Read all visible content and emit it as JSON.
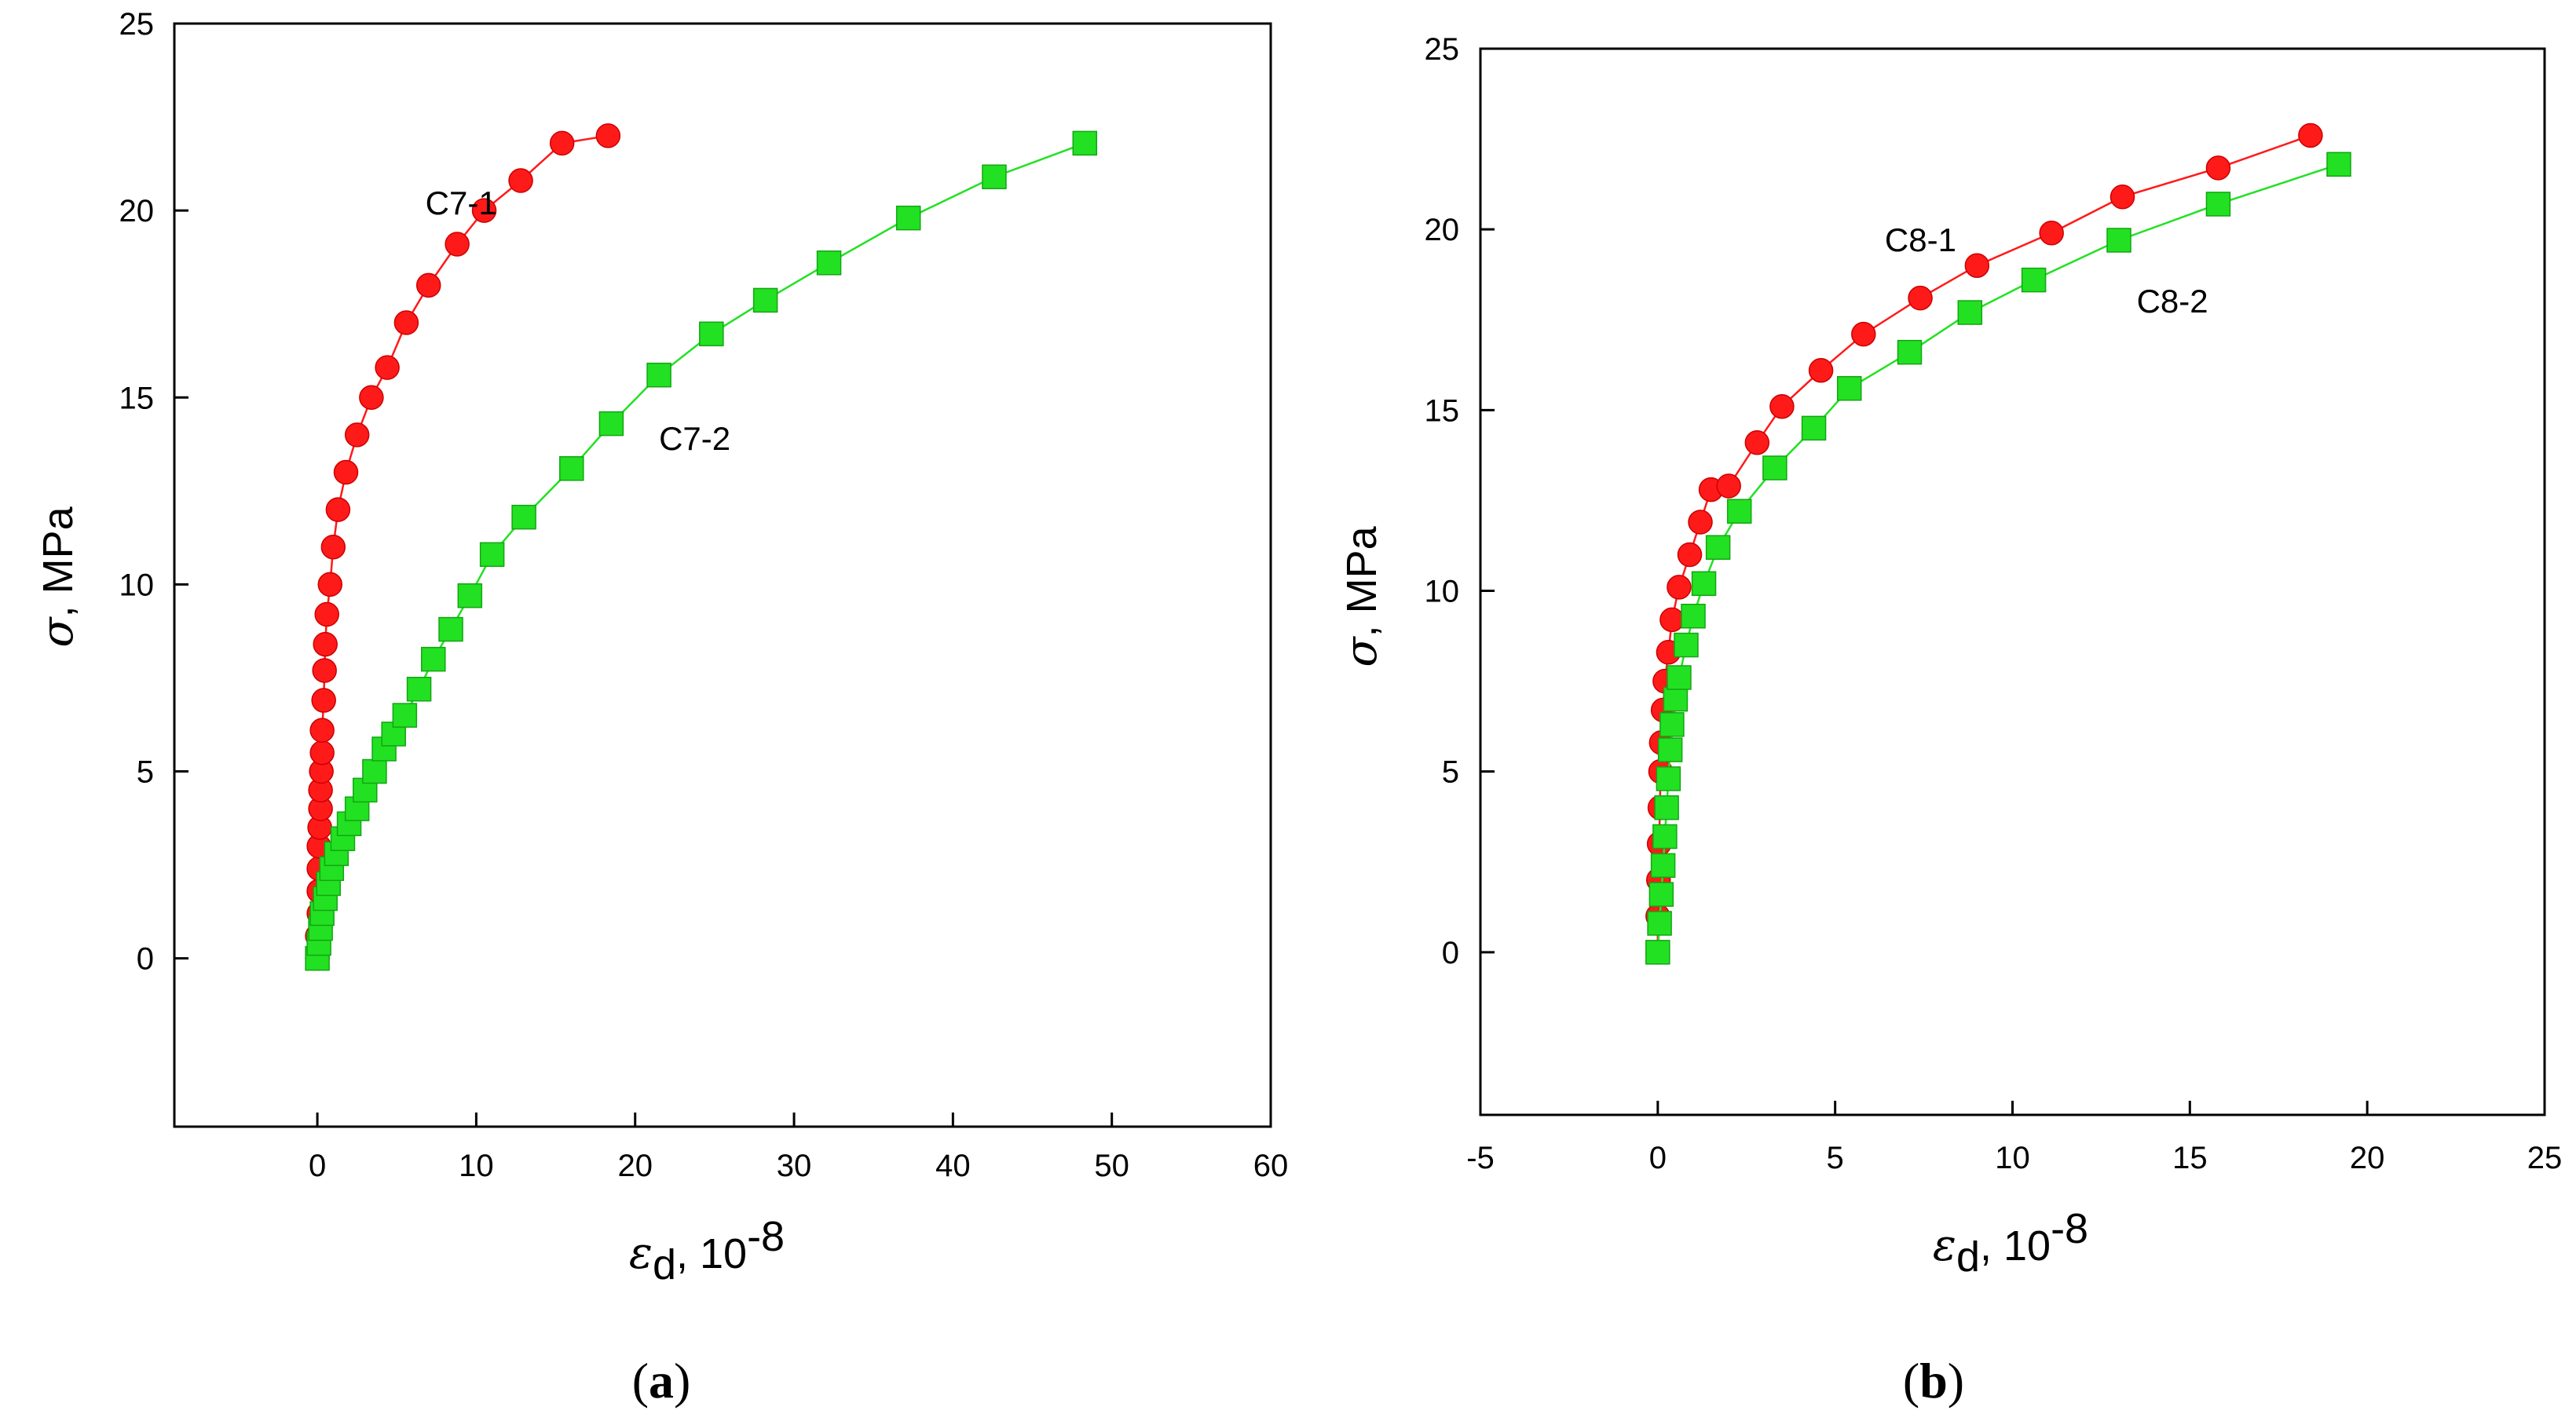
{
  "chart_data": [
    {
      "type": "scatter",
      "panel_label": "a",
      "xlabel_symbol": "ε",
      "xlabel_subscript": "d",
      "xlabel_rest": ", 10",
      "xlabel_exponent": "-8",
      "ylabel_symbol": "σ",
      "ylabel_rest": ", MPa",
      "xlim": [
        -9,
        60
      ],
      "ylim": [
        -4.5,
        25
      ],
      "xticks": [
        0,
        10,
        20,
        30,
        40,
        50,
        60
      ],
      "yticks": [
        0,
        5,
        10,
        15,
        20,
        25
      ],
      "grid": false,
      "series": [
        {
          "name": "C7-1",
          "color": "#ff1a1a",
          "marker": "circle",
          "label_at": [
            6.8,
            19.9
          ],
          "x": [
            0,
            0,
            0.1,
            0.1,
            0.1,
            0.1,
            0.15,
            0.2,
            0.2,
            0.25,
            0.3,
            0.3,
            0.4,
            0.45,
            0.5,
            0.6,
            0.8,
            1.0,
            1.3,
            1.8,
            2.5,
            3.4,
            4.4,
            5.6,
            7.0,
            8.8,
            10.5,
            12.8,
            15.4,
            18.3
          ],
          "y": [
            0,
            0.6,
            1.2,
            1.8,
            2.4,
            3.0,
            3.5,
            4.0,
            4.5,
            5.0,
            5.5,
            6.1,
            6.9,
            7.7,
            8.4,
            9.2,
            10.0,
            11.0,
            12.0,
            13.0,
            14.0,
            15.0,
            15.8,
            17.0,
            18.0,
            19.1,
            20.0,
            20.8,
            21.8,
            22.0
          ]
        },
        {
          "name": "C7-2",
          "color": "#22e122",
          "marker": "square",
          "label_at": [
            21.5,
            13.6
          ],
          "x": [
            0,
            0.1,
            0.2,
            0.3,
            0.5,
            0.7,
            0.9,
            1.2,
            1.6,
            2.0,
            2.5,
            3.0,
            3.6,
            4.2,
            4.8,
            5.5,
            6.4,
            7.3,
            8.4,
            9.6,
            11.0,
            13.0,
            16.0,
            18.5,
            21.5,
            24.8,
            28.2,
            32.2,
            37.2,
            42.6,
            48.3
          ],
          "y": [
            0,
            0.4,
            0.8,
            1.2,
            1.6,
            2.0,
            2.4,
            2.8,
            3.2,
            3.6,
            4.0,
            4.5,
            5.0,
            5.6,
            6.0,
            6.5,
            7.2,
            8.0,
            8.8,
            9.7,
            10.8,
            11.8,
            13.1,
            14.3,
            15.6,
            16.7,
            17.6,
            18.6,
            19.8,
            20.9,
            21.8
          ]
        }
      ]
    },
    {
      "type": "scatter",
      "panel_label": "b",
      "xlabel_symbol": "ε",
      "xlabel_subscript": "d",
      "xlabel_rest": ", 10",
      "xlabel_exponent": "-8",
      "ylabel_symbol": "σ",
      "ylabel_rest": ", MPa",
      "xlim": [
        -5,
        25
      ],
      "ylim": [
        -4.5,
        25
      ],
      "xticks": [
        -5,
        0,
        5,
        10,
        15,
        20,
        25
      ],
      "yticks": [
        0,
        5,
        10,
        15,
        20,
        25
      ],
      "grid": false,
      "series": [
        {
          "name": "C8-1",
          "color": "#ff1a1a",
          "marker": "circle",
          "label_at": [
            6.4,
            19.4
          ],
          "x": [
            0,
            0,
            0.02,
            0.04,
            0.06,
            0.08,
            0.1,
            0.15,
            0.2,
            0.3,
            0.4,
            0.6,
            0.9,
            1.2,
            1.5,
            2.0,
            2.8,
            3.5,
            4.6,
            5.8,
            7.4,
            9.0,
            11.1,
            13.1,
            15.8,
            18.4
          ],
          "y": [
            0,
            1.0,
            2.0,
            3.0,
            4.0,
            5.0,
            5.8,
            6.7,
            7.5,
            8.3,
            9.2,
            10.1,
            11.0,
            11.9,
            12.8,
            12.9,
            14.1,
            15.1,
            16.1,
            17.1,
            18.1,
            19.0,
            19.9,
            20.9,
            21.7,
            22.6
          ]
        },
        {
          "name": "C8-2",
          "color": "#22e122",
          "marker": "square",
          "label_at": [
            13.5,
            17.7
          ],
          "x": [
            0,
            0.05,
            0.1,
            0.15,
            0.2,
            0.25,
            0.3,
            0.35,
            0.4,
            0.5,
            0.6,
            0.8,
            1.0,
            1.3,
            1.7,
            2.3,
            3.3,
            4.4,
            5.4,
            7.1,
            8.8,
            10.6,
            13.0,
            15.8,
            19.2
          ],
          "y": [
            0,
            0.8,
            1.6,
            2.4,
            3.2,
            4.0,
            4.8,
            5.6,
            6.3,
            7.0,
            7.6,
            8.5,
            9.3,
            10.2,
            11.2,
            12.2,
            13.4,
            14.5,
            15.6,
            16.6,
            17.7,
            18.6,
            19.7,
            20.7,
            21.8
          ]
        }
      ]
    }
  ]
}
